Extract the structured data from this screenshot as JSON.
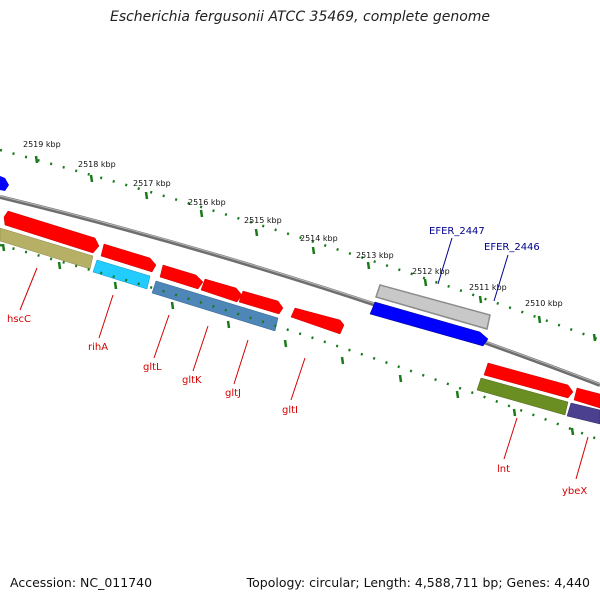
{
  "title": "Escherichia fergusonii ATCC 35469, complete genome",
  "footer": {
    "accession": "Accession: NC_011740",
    "summary": "Topology: circular; Length: 4,588,711 bp; Genes: 4,440"
  },
  "scale": {
    "ticks": [
      "2519 kbp",
      "2518 kbp",
      "2517 kbp",
      "2516 kbp",
      "2515 kbp",
      "2514 kbp",
      "2513 kbp",
      "2512 kbp",
      "2511 kbp",
      "2510 kbp"
    ]
  },
  "colors": {
    "red": "#ff0000",
    "blue": "#0000ff",
    "cyan": "#22ccff",
    "steel": "#4f86b8",
    "olive": "#b5b066",
    "green": "#6b8e23",
    "purple": "#4b3f8f",
    "silver": "#c8c8c8",
    "scale_green": "#1a7a1a",
    "backbone": "#777777"
  },
  "genes": [
    {
      "name": "hscC",
      "color": "olive"
    },
    {
      "name": "rihA",
      "color": "cyan"
    },
    {
      "name": "gltL",
      "color": "steel"
    },
    {
      "name": "gltK",
      "color": "steel"
    },
    {
      "name": "gltJ",
      "color": "steel"
    },
    {
      "name": "gltI",
      "color": "red"
    },
    {
      "name": "lnt",
      "color": "green"
    },
    {
      "name": "ybeX",
      "color": "purple"
    },
    {
      "name": "EFER_2447",
      "color": "silver"
    },
    {
      "name": "EFER_2446",
      "color": "blue"
    }
  ]
}
